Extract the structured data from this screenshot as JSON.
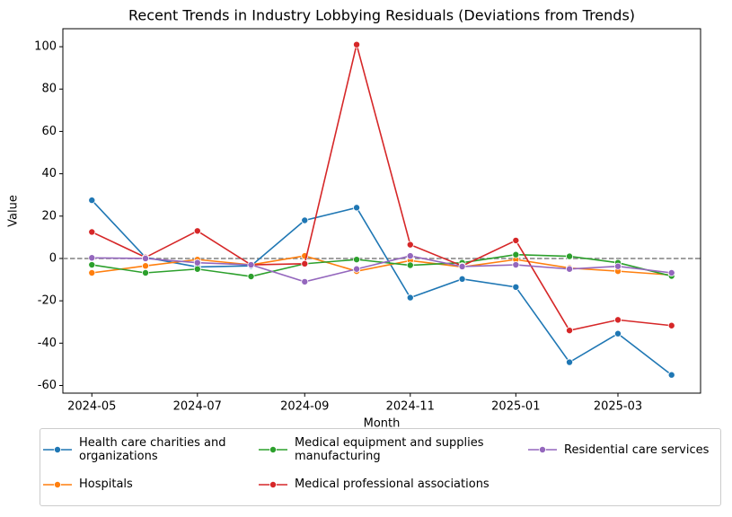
{
  "chart_data": {
    "type": "line",
    "title": "Recent Trends in Industry Lobbying Residuals (Deviations from Trends)",
    "x_label": "Month",
    "y_label": "Value",
    "x": [
      "2024-05",
      "2024-06",
      "2024-07",
      "2024-08",
      "2024-09",
      "2024-10",
      "2024-11",
      "2024-12",
      "2025-01",
      "2025-02",
      "2025-03",
      "2025-04"
    ],
    "xticks": [
      "2024-05",
      "2024-07",
      "2024-09",
      "2024-11",
      "2025-01",
      "2025-03"
    ],
    "ylim": [
      -63.6,
      108.5
    ],
    "yticks": [
      -60,
      -40,
      -20,
      0,
      20,
      40,
      60,
      80,
      100
    ],
    "hline": 0,
    "series": [
      {
        "name": "Health care charities and organizations",
        "color": "#1f77b4",
        "values": [
          27.5,
          0.5,
          -4,
          -3.5,
          18,
          24,
          -18.5,
          -9.7,
          -13.5,
          -49,
          -35.5,
          -55
        ]
      },
      {
        "name": "Hospitals",
        "color": "#ff7f0e",
        "values": [
          -6.8,
          -3.5,
          -0.5,
          -3,
          1.2,
          -6,
          -1,
          -4,
          -0.5,
          -4.5,
          -6,
          -7.8
        ]
      },
      {
        "name": "Medical equipment and supplies manufacturing",
        "color": "#2ca02c",
        "values": [
          -3,
          -6.8,
          -5,
          -8.5,
          -2.5,
          -0.5,
          -3.2,
          -2,
          1.8,
          1,
          -2,
          -8.3
        ]
      },
      {
        "name": "Medical professional associations",
        "color": "#d62728",
        "values": [
          12.5,
          0.5,
          13,
          -3,
          -2.5,
          101,
          6.5,
          -3.5,
          8.5,
          -34,
          -29,
          -31.7
        ]
      },
      {
        "name": "Residential care services",
        "color": "#9467bd",
        "values": [
          0.3,
          0,
          -2,
          -3,
          -11,
          -5,
          1.2,
          -3.8,
          -3,
          -5,
          -3.7,
          -6.8
        ]
      }
    ]
  }
}
